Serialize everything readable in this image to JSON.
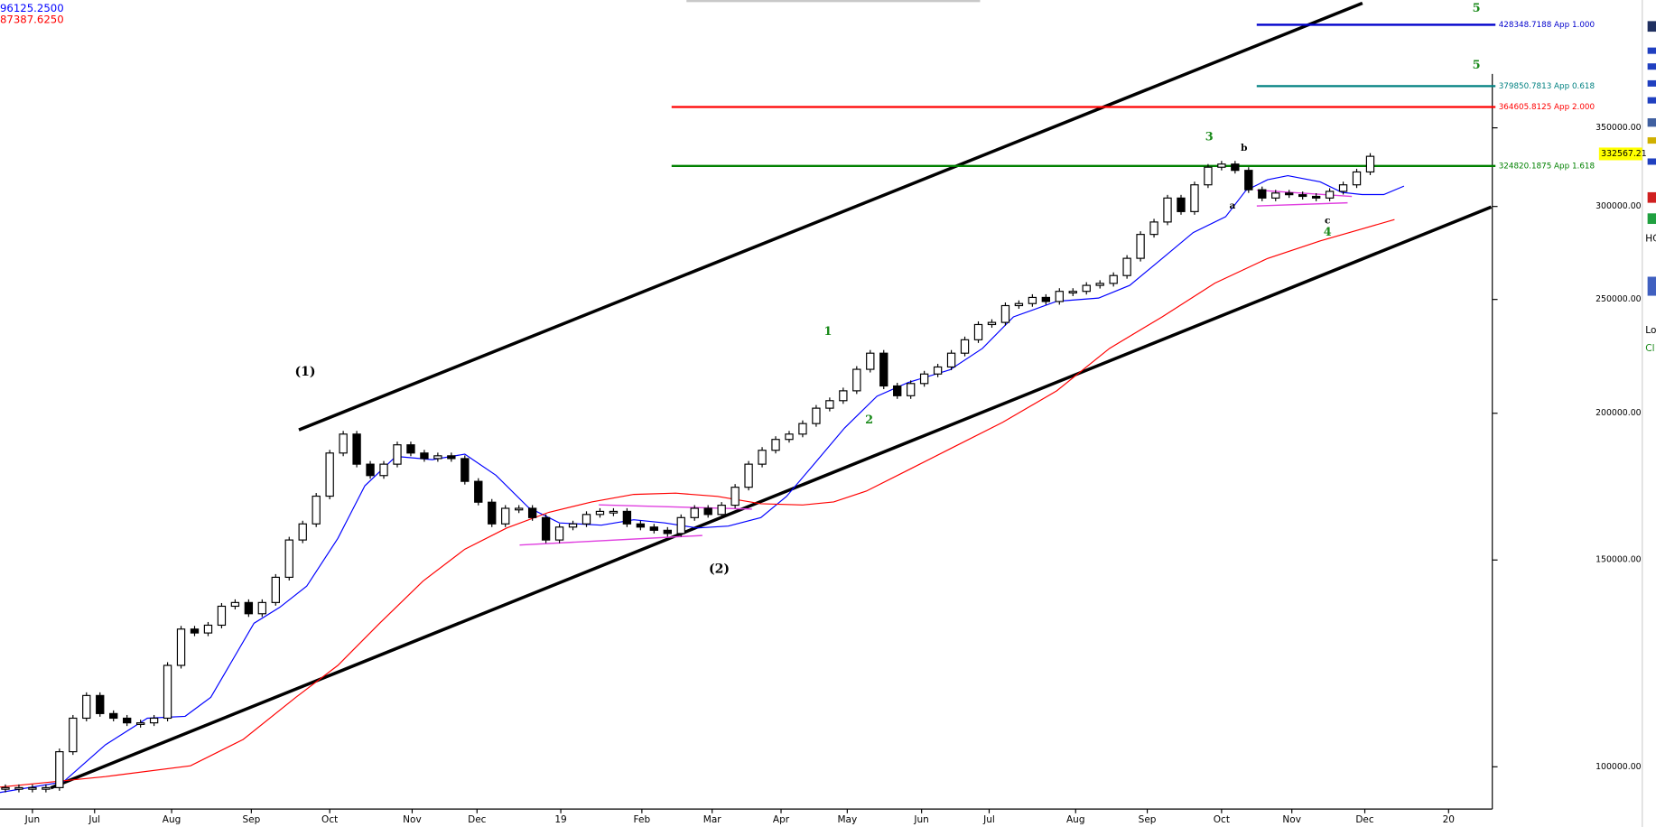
{
  "chart_data": {
    "type": "candlestick",
    "log_scale": true,
    "ma_readouts": [
      {
        "text": "96125.2500",
        "color": "#0000ff"
      },
      {
        "text": "87387.6250",
        "color": "#ff0000"
      }
    ],
    "xlim": [
      -0.4,
      109.8
    ],
    "xticks": [
      {
        "value": 2.0,
        "label": "Jun"
      },
      {
        "value": 6.6,
        "label": "Jul"
      },
      {
        "value": 12.3,
        "label": "Aug"
      },
      {
        "value": 18.2,
        "label": "Sep"
      },
      {
        "value": 24.0,
        "label": "Oct"
      },
      {
        "value": 30.1,
        "label": "Nov"
      },
      {
        "value": 34.9,
        "label": "Dec"
      },
      {
        "value": 41.1,
        "label": "19"
      },
      {
        "value": 47.1,
        "label": "Feb"
      },
      {
        "value": 52.3,
        "label": "Mar"
      },
      {
        "value": 57.4,
        "label": "Apr"
      },
      {
        "value": 62.3,
        "label": "May"
      },
      {
        "value": 67.8,
        "label": "Jun"
      },
      {
        "value": 72.8,
        "label": "Jul"
      },
      {
        "value": 79.2,
        "label": "Aug"
      },
      {
        "value": 84.5,
        "label": "Sep"
      },
      {
        "value": 90.0,
        "label": "Oct"
      },
      {
        "value": 95.2,
        "label": "Nov"
      },
      {
        "value": 100.6,
        "label": "Dec"
      },
      {
        "value": 106.8,
        "label": "20"
      }
    ],
    "ylim": [
      92050,
      449700
    ],
    "yticks": [
      {
        "value": 100000,
        "label": "100000.00"
      },
      {
        "value": 150000,
        "label": "150000.00"
      },
      {
        "value": 200000,
        "label": "200000.00"
      },
      {
        "value": 250000,
        "label": "250000.00"
      },
      {
        "value": 300000,
        "label": "300000.00"
      },
      {
        "value": 350000,
        "label": "350000.00"
      }
    ],
    "series": [
      {
        "type": "candlestick",
        "color": "#000000",
        "values": [
          96000,
          96000,
          96000,
          96000,
          103000,
          110000,
          115000,
          111000,
          110000,
          109000,
          109000,
          110000,
          122000,
          131000,
          130000,
          132000,
          137000,
          138000,
          135000,
          138000,
          145000,
          156000,
          161000,
          170000,
          185000,
          192000,
          181000,
          177000,
          181000,
          188000,
          185000,
          183000,
          184000,
          183000,
          175000,
          168000,
          161000,
          166000,
          166000,
          163000,
          156000,
          160000,
          161000,
          164000,
          165000,
          165000,
          161000,
          160000,
          159000,
          158000,
          163000,
          166000,
          164000,
          167000,
          173000,
          181000,
          186000,
          190000,
          192000,
          196000,
          202000,
          205000,
          209000,
          218000,
          225000,
          211000,
          207000,
          212000,
          216000,
          219000,
          225000,
          231000,
          238000,
          239000,
          247000,
          248000,
          251000,
          249000,
          254000,
          254000,
          257000,
          258000,
          262000,
          271000,
          284000,
          291000,
          305000,
          297000,
          313000,
          324000,
          326000,
          322000,
          310000,
          305000,
          308000,
          307000,
          306000,
          305000,
          309000,
          313000,
          321000,
          331000
        ]
      },
      {
        "type": "line",
        "color": "#0000ff",
        "x": [
          -0.4,
          4.3,
          7.4,
          10.5,
          13.3,
          15.2,
          18.4,
          20.3,
          22.3,
          24.6,
          26.6,
          28.9,
          31.6,
          34.0,
          36.3,
          38.7,
          41.0,
          44.1,
          46.5,
          48.8,
          51.2,
          53.5,
          55.9,
          57.8,
          59.8,
          62.1,
          64.5,
          66.8,
          69.9,
          72.3,
          74.6,
          77.8,
          80.9,
          83.2,
          85.6,
          87.9,
          90.3,
          91.8,
          93.4,
          94.9,
          97.3,
          98.9,
          100.4,
          102.0,
          103.5
        ],
        "values": [
          95100,
          97100,
          104400,
          110000,
          110400,
          114600,
          132500,
          136700,
          142500,
          156500,
          173500,
          183800,
          182600,
          184600,
          177100,
          166300,
          161300,
          160600,
          162300,
          161300,
          159700,
          160300,
          163000,
          169900,
          180800,
          194300,
          206800,
          212400,
          217800,
          227100,
          241600,
          249100,
          250700,
          257000,
          270900,
          285000,
          294000,
          309600,
          316100,
          318700,
          314800,
          308400,
          307100,
          307100,
          312200
        ]
      },
      {
        "type": "line",
        "color": "#ff0000",
        "x": [
          -0.4,
          7.4,
          13.7,
          17.6,
          21.5,
          24.6,
          27.7,
          30.9,
          34.0,
          37.1,
          40.2,
          43.4,
          46.5,
          49.6,
          52.7,
          55.9,
          59.0,
          61.3,
          63.7,
          66.8,
          69.9,
          73.8,
          77.8,
          81.7,
          85.6,
          89.5,
          93.4,
          97.3,
          102.8
        ],
        "values": [
          96100,
          98100,
          100200,
          105500,
          114600,
          122000,
          132500,
          143900,
          153200,
          159700,
          164700,
          168100,
          170600,
          171000,
          169900,
          167500,
          167100,
          168100,
          171700,
          178900,
          186500,
          196500,
          209000,
          227100,
          241600,
          258100,
          270900,
          280400,
          292400
        ]
      }
    ],
    "levels": [
      {
        "value": 428348.7188,
        "label": "428348.7188 App 1.000",
        "color": "#0000cc",
        "x_start": 92.6
      },
      {
        "value": 379850.7813,
        "label": "379850.7813 App 0.618",
        "color": "#008080",
        "x_start": 92.6
      },
      {
        "value": 364605.8125,
        "label": "364605.8125 App 2.000",
        "color": "#ff0000",
        "x_start": 49.3
      },
      {
        "value": 324820.1875,
        "label": "324820.1875 App 1.618",
        "color": "#008000",
        "x_start": 49.3
      }
    ],
    "last_price": 332567.21,
    "annotations": [
      {
        "text": "(1)",
        "color": "#000000"
      },
      {
        "text": "(2)",
        "color": "#000000"
      },
      {
        "text": "1",
        "color": "#1a8a1a"
      },
      {
        "text": "2",
        "color": "#1a8a1a"
      },
      {
        "text": "3",
        "color": "#1a8a1a"
      },
      {
        "text": "4",
        "color": "#1a8a1a"
      },
      {
        "text": "5",
        "color": "#1a8a1a"
      },
      {
        "text": "5",
        "color": "#1a8a1a"
      },
      {
        "text": "a",
        "color": "#000000"
      },
      {
        "text": "b",
        "color": "#000000"
      },
      {
        "text": "c",
        "color": "#000000"
      }
    ]
  },
  "sidebar": {
    "labels": [
      "HC",
      "Lo",
      "Cl"
    ]
  }
}
